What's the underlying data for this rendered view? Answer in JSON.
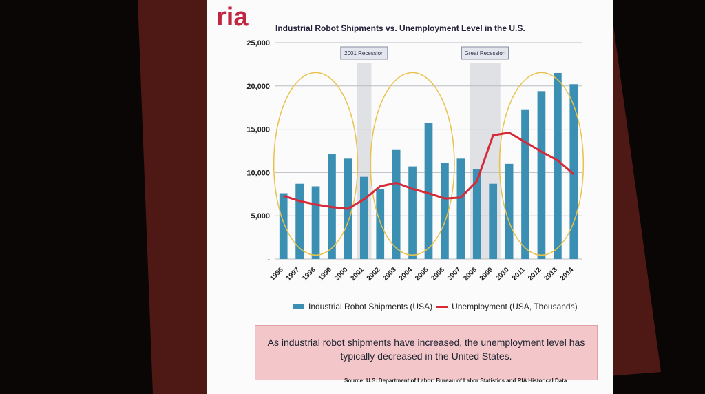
{
  "slide": {
    "logo": "ria",
    "caption": "As industrial robot shipments have increased, the unemployment level has typically decreased in the United States.",
    "source": "Source: U.S. Department of Labor: Bureau of Labor Statistics and RIA Historical Data"
  },
  "colors": {
    "bar": "#3b8fb3",
    "line": "#d42a3a",
    "circle": "#e9c24a",
    "recession_band": "#c9ccd1",
    "screen_border": "#5a1a17"
  },
  "chart_data": {
    "type": "bar",
    "title": "Industrial Robot Shipments vs. Unemployment Level in the U.S.",
    "categories": [
      "1996",
      "1997",
      "1998",
      "1999",
      "2000",
      "2001",
      "2002",
      "2003",
      "2004",
      "2005",
      "2006",
      "2007",
      "2008",
      "2009",
      "2010",
      "2011",
      "2012",
      "2013",
      "2014"
    ],
    "series": [
      {
        "name": "Industrial Robot Shipments (USA)",
        "type": "bar",
        "values": [
          7600,
          8700,
          8400,
          12100,
          11600,
          9500,
          8100,
          12600,
          10700,
          15700,
          11100,
          11600,
          10400,
          8700,
          11000,
          17300,
          19400,
          21500,
          20200
        ]
      },
      {
        "name": "Unemployment (USA, Thousands)",
        "type": "line",
        "values": [
          7300,
          6700,
          6300,
          6000,
          5800,
          6900,
          8400,
          8800,
          8100,
          7600,
          7000,
          7100,
          9000,
          14300,
          14600,
          13500,
          12400,
          11400,
          9800
        ]
      }
    ],
    "ylim": [
      0,
      25000
    ],
    "yticks": [
      "25,000",
      "20,000",
      "15,000",
      "10,000",
      "5,000",
      "-"
    ],
    "annotations": [
      {
        "label": "2001 Recession",
        "start": "2001",
        "end": "2001"
      },
      {
        "label": "Great Recession",
        "start": "2008",
        "end": "2009"
      }
    ],
    "grid": true,
    "legend": "bottom"
  }
}
